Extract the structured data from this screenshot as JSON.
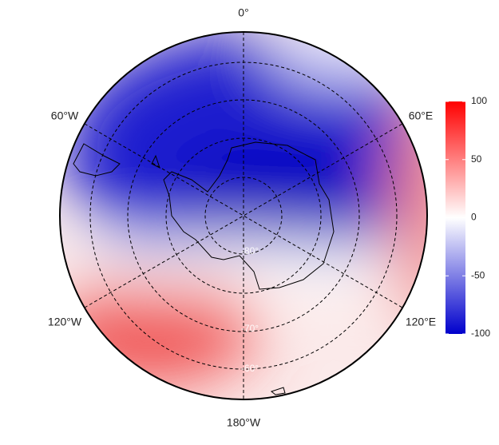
{
  "map": {
    "longitude_labels": [
      "0°",
      "60°E",
      "120°E",
      "180°W",
      "120°W",
      "60°W"
    ],
    "latitude_labels": [
      "-80°",
      "-70°",
      "-60°"
    ],
    "colorbar": {
      "lim": [
        -100,
        100
      ],
      "ticks": [
        100,
        50,
        0,
        -50,
        -100
      ]
    }
  }
}
